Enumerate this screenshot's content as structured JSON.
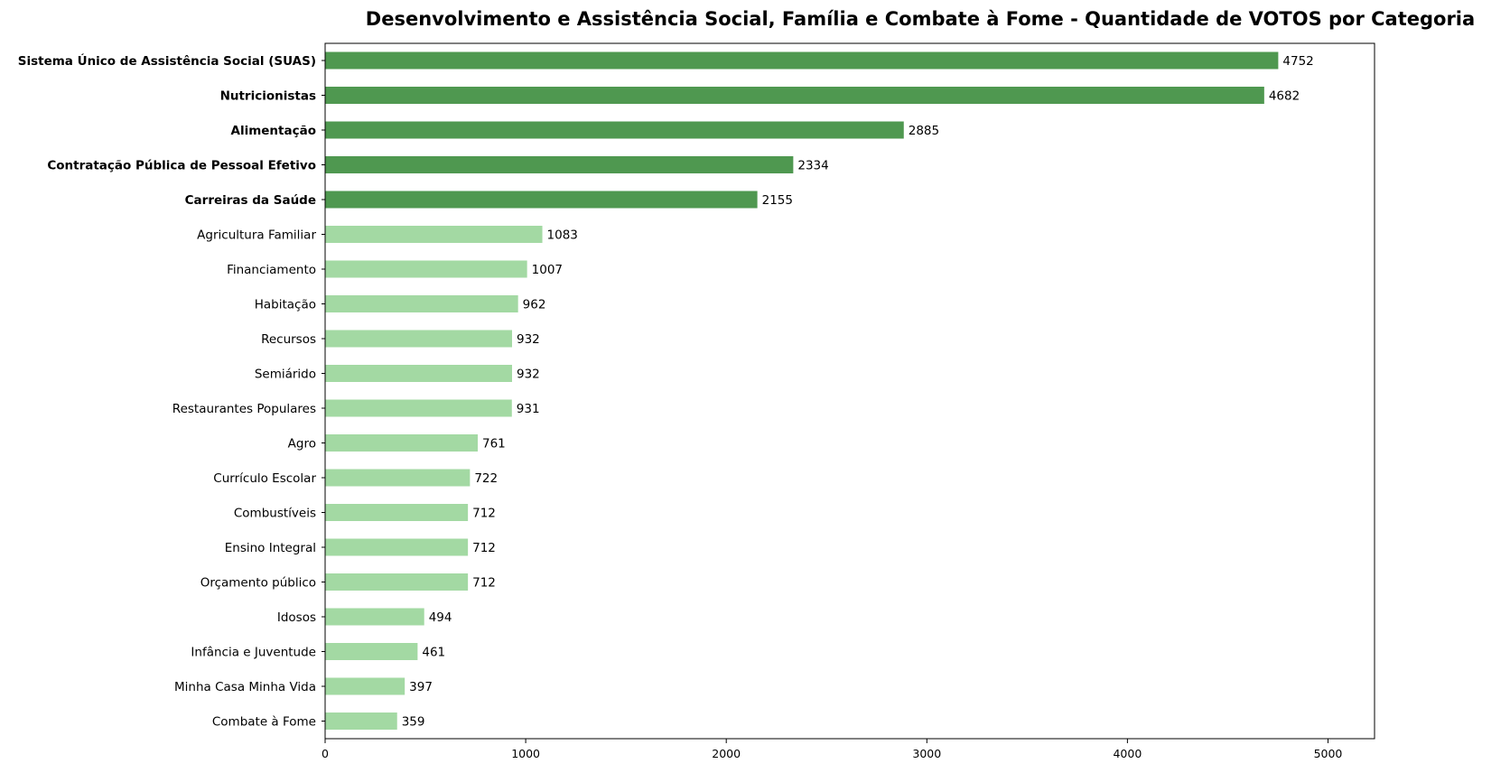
{
  "chart_data": {
    "type": "bar",
    "orientation": "horizontal",
    "title": "Desenvolvimento e Assistência Social, Família e Combate à Fome - Quantidade de VOTOS por Categoria",
    "xlabel": "",
    "ylabel": "",
    "xlim": [
      0,
      5232
    ],
    "xticks": [
      0,
      1000,
      2000,
      3000,
      4000,
      5000
    ],
    "grid": false,
    "legend": "none",
    "colors": {
      "highlight": "#4f9850",
      "normal": "#a3d9a3"
    },
    "categories": [
      "Sistema Único de Assistência Social (SUAS)",
      "Nutricionistas",
      "Alimentação",
      "Contratação Pública de Pessoal Efetivo",
      "Carreiras da Saúde",
      "Agricultura Familiar",
      "Financiamento",
      "Habitação",
      "Recursos",
      "Semiárido",
      "Restaurantes Populares",
      "Agro",
      "Currículo Escolar",
      "Combustíveis",
      "Ensino Integral",
      "Orçamento público",
      "Idosos",
      "Infância e Juventude",
      "Minha Casa Minha Vida",
      "Combate à Fome"
    ],
    "values": [
      4752,
      4682,
      2885,
      2334,
      2155,
      1083,
      1007,
      962,
      932,
      932,
      931,
      761,
      722,
      712,
      712,
      712,
      494,
      461,
      397,
      359
    ],
    "highlighted_top_n": 5
  }
}
